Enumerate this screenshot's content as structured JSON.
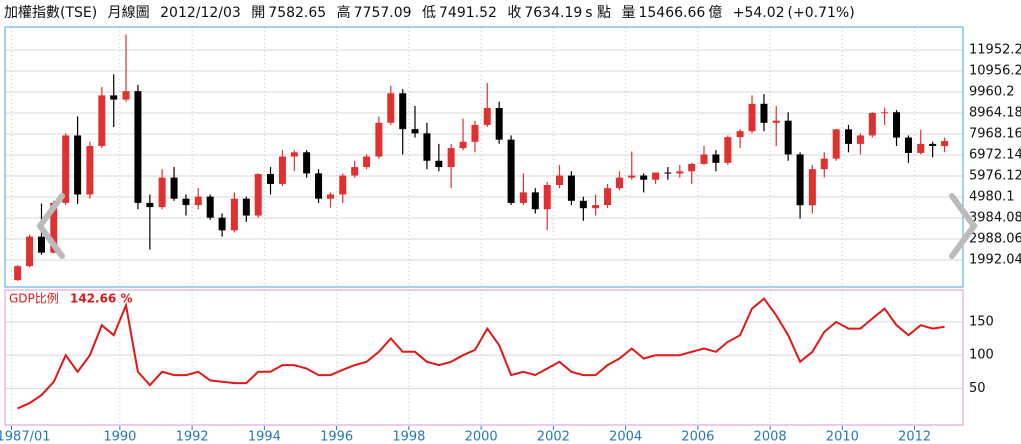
{
  "header": {
    "name": "加權指數(TSE)",
    "period": "月線圖",
    "date": "2012/12/03",
    "open_label": "開",
    "open": "7582.65",
    "high_label": "高",
    "high": "7757.09",
    "low_label": "低",
    "low": "7491.52",
    "close_label": "收",
    "close": "7634.19",
    "close_unit": "s 點",
    "volume_label": "量",
    "volume": "15466.66",
    "volume_unit": "億",
    "change": "+54.02",
    "change_pct": "(+0.71%)"
  },
  "chart_data": [
    {
      "type": "candlestick",
      "up_color": "#e03030",
      "down_color": "#000000",
      "border_color": "#4aa3df",
      "grid": true,
      "xlim": [
        1986.82,
        2013.34
      ],
      "xticks": [
        {
          "value": 1987,
          "label": "1987/01"
        },
        1990,
        1992,
        1994,
        1996,
        1998,
        2000,
        2002,
        2004,
        2006,
        2008,
        2010,
        2012
      ],
      "ylim": [
        712,
        13043
      ],
      "yticks": [
        1992.04,
        2988.06,
        3984.08,
        4980.1,
        5976.12,
        6972.14,
        7968.16,
        8964.18,
        9960.2,
        10956.2,
        11952.2
      ],
      "x": [
        1987.17,
        1987.5,
        1987.83,
        1988.17,
        1988.5,
        1988.83,
        1989.17,
        1989.5,
        1989.83,
        1990.17,
        1990.5,
        1990.83,
        1991.17,
        1991.5,
        1991.83,
        1992.17,
        1992.5,
        1992.83,
        1993.17,
        1993.5,
        1993.83,
        1994.17,
        1994.5,
        1994.83,
        1995.17,
        1995.5,
        1995.83,
        1996.17,
        1996.5,
        1996.83,
        1997.17,
        1997.5,
        1997.83,
        1998.17,
        1998.5,
        1998.83,
        1999.17,
        1999.5,
        1999.83,
        2000.17,
        2000.5,
        2000.83,
        2001.17,
        2001.5,
        2001.83,
        2002.17,
        2002.5,
        2002.83,
        2003.17,
        2003.5,
        2003.83,
        2004.17,
        2004.5,
        2004.83,
        2005.17,
        2005.5,
        2005.83,
        2006.17,
        2006.5,
        2006.83,
        2007.17,
        2007.5,
        2007.83,
        2008.17,
        2008.5,
        2008.83,
        2009.17,
        2009.5,
        2009.83,
        2010.17,
        2010.5,
        2010.83,
        2011.17,
        2011.5,
        2011.83,
        2012.17,
        2012.5,
        2012.83
      ],
      "open": [
        1040,
        1700,
        3100,
        2340,
        4700,
        7900,
        5100,
        7400,
        9800,
        9600,
        10000,
        4700,
        4500,
        5900,
        4900,
        4600,
        5000,
        4000,
        3400,
        4900,
        4100,
        6070,
        5600,
        6900,
        7100,
        6100,
        4900,
        5100,
        6000,
        6400,
        6900,
        8500,
        9900,
        8200,
        8000,
        6700,
        6400,
        7300,
        7600,
        8400,
        9200,
        7700,
        4700,
        5200,
        4400,
        5550,
        6000,
        4800,
        4450,
        4600,
        5400,
        5900,
        6000,
        5800,
        6140,
        6100,
        6200,
        6550,
        7000,
        6600,
        7820,
        8100,
        9400,
        8500,
        8600,
        7000,
        4590,
        6300,
        6800,
        8190,
        7500,
        7900,
        8970,
        9000,
        7800,
        7070,
        7500,
        7400
      ],
      "high": [
        1750,
        3200,
        4670,
        4800,
        8000,
        8800,
        7600,
        10200,
        10800,
        12682,
        10300,
        5100,
        6300,
        6400,
        5100,
        5400,
        5100,
        4200,
        5200,
        5000,
        6100,
        6400,
        7200,
        7200,
        7200,
        6300,
        5200,
        6100,
        6700,
        7000,
        8800,
        10256,
        10100,
        9300,
        8500,
        7500,
        7500,
        8700,
        8600,
        10393,
        9500,
        7900,
        6100,
        5400,
        5700,
        6500,
        6200,
        5000,
        5100,
        5600,
        6200,
        7140,
        6100,
        6100,
        6400,
        6500,
        6600,
        7400,
        7200,
        7900,
        8200,
        9800,
        9860,
        9300,
        9000,
        7100,
        6500,
        7100,
        8200,
        8400,
        8000,
        9000,
        9220,
        9100,
        7900,
        8170,
        7600,
        7800
      ],
      "low": [
        1000,
        1650,
        2240,
        2300,
        4600,
        4650,
        4900,
        7300,
        8300,
        9500,
        4400,
        2485,
        4400,
        4800,
        4100,
        4400,
        3900,
        3100,
        3300,
        3800,
        4000,
        5100,
        5500,
        6200,
        5900,
        4700,
        4470,
        4700,
        5900,
        6300,
        6800,
        8400,
        7000,
        7800,
        6300,
        6200,
        5400,
        7200,
        7100,
        8300,
        7500,
        4600,
        4600,
        4200,
        3411,
        5400,
        4600,
        3850,
        4100,
        4450,
        5300,
        5800,
        5200,
        5600,
        5800,
        5900,
        5600,
        6500,
        6200,
        6500,
        7300,
        8000,
        8100,
        7400,
        6700,
        3955,
        4200,
        5900,
        6700,
        7100,
        7000,
        7800,
        8400,
        7400,
        6600,
        7000,
        6860,
        7100
      ],
      "close": [
        1700,
        3100,
        2340,
        4700,
        7900,
        5100,
        7400,
        9800,
        9600,
        10000,
        4700,
        4500,
        5900,
        4900,
        4600,
        5000,
        4000,
        3400,
        4900,
        4100,
        6070,
        5600,
        6900,
        7100,
        6100,
        4900,
        5100,
        6000,
        6400,
        6900,
        8500,
        9900,
        8200,
        8000,
        6700,
        6400,
        7300,
        7600,
        8400,
        9200,
        7700,
        4700,
        5200,
        4400,
        5550,
        6000,
        4800,
        4450,
        4600,
        5400,
        5900,
        6000,
        5800,
        6140,
        6100,
        6200,
        6550,
        7000,
        6600,
        7820,
        8100,
        9400,
        8500,
        8600,
        7000,
        4590,
        6300,
        6800,
        8190,
        7500,
        7900,
        8970,
        9000,
        7800,
        7070,
        7500,
        7400,
        7634
      ]
    },
    {
      "type": "line",
      "title": "GDP比例",
      "current_label": "142.66 %",
      "color": "#e01818",
      "border_color": "#e090d8",
      "grid": true,
      "xlim": [
        1986.82,
        2013.34
      ],
      "ylim": [
        -5,
        198
      ],
      "yticks": [
        50,
        100,
        150
      ],
      "x": [
        1987.17,
        1987.5,
        1987.83,
        1988.17,
        1988.5,
        1988.83,
        1989.17,
        1989.5,
        1989.83,
        1990.17,
        1990.5,
        1990.83,
        1991.17,
        1991.5,
        1991.83,
        1992.17,
        1992.5,
        1992.83,
        1993.17,
        1993.5,
        1993.83,
        1994.17,
        1994.5,
        1994.83,
        1995.17,
        1995.5,
        1995.83,
        1996.17,
        1996.5,
        1996.83,
        1997.17,
        1997.5,
        1997.83,
        1998.17,
        1998.5,
        1998.83,
        1999.17,
        1999.5,
        1999.83,
        2000.17,
        2000.5,
        2000.83,
        2001.17,
        2001.5,
        2001.83,
        2002.17,
        2002.5,
        2002.83,
        2003.17,
        2003.5,
        2003.83,
        2004.17,
        2004.5,
        2004.83,
        2005.17,
        2005.5,
        2005.83,
        2006.17,
        2006.5,
        2006.83,
        2007.17,
        2007.5,
        2007.83,
        2008.17,
        2008.5,
        2008.83,
        2009.17,
        2009.5,
        2009.83,
        2010.17,
        2010.5,
        2010.83,
        2011.17,
        2011.5,
        2011.83,
        2012.17,
        2012.5,
        2012.83
      ],
      "values": [
        20,
        28,
        40,
        60,
        100,
        75,
        100,
        145,
        130,
        175,
        75,
        55,
        75,
        70,
        70,
        75,
        62,
        60,
        58,
        58,
        75,
        75,
        85,
        85,
        80,
        70,
        70,
        78,
        85,
        90,
        105,
        125,
        105,
        105,
        90,
        85,
        90,
        100,
        108,
        140,
        115,
        70,
        75,
        70,
        80,
        90,
        75,
        70,
        70,
        85,
        95,
        110,
        95,
        100,
        100,
        100,
        105,
        110,
        105,
        120,
        130,
        170,
        185,
        160,
        130,
        90,
        105,
        135,
        150,
        140,
        140,
        155,
        170,
        145,
        130,
        145,
        140,
        142.66
      ]
    }
  ]
}
